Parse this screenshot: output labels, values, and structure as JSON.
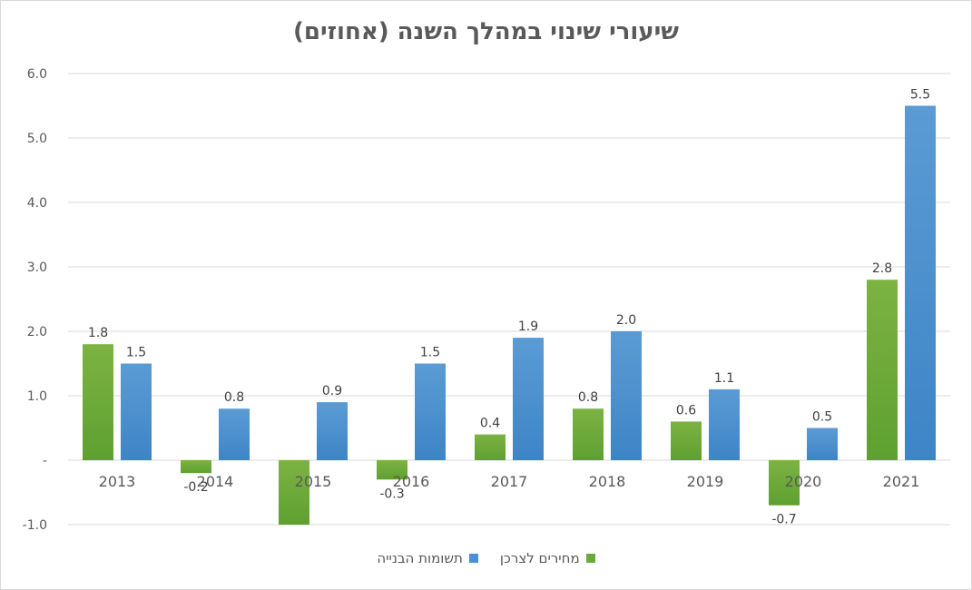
{
  "chart_data": {
    "type": "bar",
    "title": "שיעורי שינוי  במהלך השנה (אחוזים)",
    "categories": [
      "2013",
      "2014",
      "2015",
      "2016",
      "2017",
      "2018",
      "2019",
      "2020",
      "2021"
    ],
    "series": [
      {
        "name": "מחירים לצרכן",
        "color": "#6aaa3c",
        "values": [
          1.8,
          -0.2,
          -1.0,
          -0.3,
          0.4,
          0.8,
          0.6,
          -0.7,
          2.8
        ],
        "labels": [
          "1.8",
          "-0.2",
          "",
          "-0.3",
          "0.4",
          "0.8",
          "0.6",
          "-0.7",
          "2.8"
        ]
      },
      {
        "name": "תשומות הבנייה",
        "color": "#4a90d6",
        "values": [
          1.5,
          0.8,
          0.9,
          1.5,
          1.9,
          2.0,
          1.1,
          0.5,
          5.5
        ],
        "labels": [
          "1.5",
          "0.8",
          "0.9",
          "1.5",
          "1.9",
          "2.0",
          "1.1",
          "0.5",
          "5.5"
        ]
      }
    ],
    "yticks": [
      "-1.0",
      "-",
      "1.0",
      "2.0",
      "3.0",
      "4.0",
      "5.0",
      "6.0"
    ],
    "ytick_values": [
      -1,
      0,
      1,
      2,
      3,
      4,
      5,
      6
    ],
    "ylim": [
      -1,
      6
    ],
    "grid": true,
    "legend_position": "bottom"
  }
}
